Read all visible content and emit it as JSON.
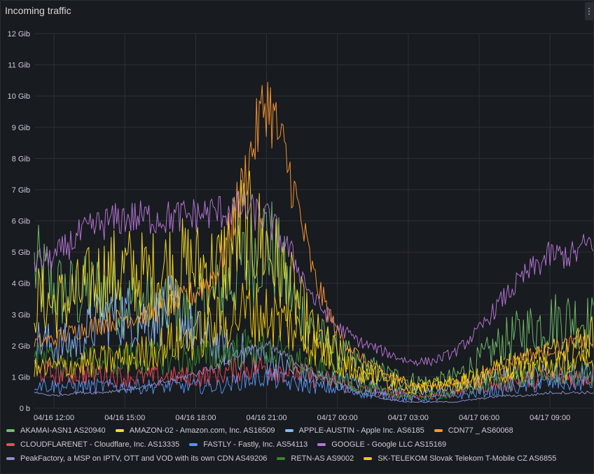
{
  "panel": {
    "title": "Incoming traffic",
    "menu_icon": "vertical-ellipsis-icon"
  },
  "chart_data": {
    "type": "line",
    "title": "Incoming traffic",
    "xlabel": "",
    "ylabel": "",
    "grid": true,
    "legend_position": "bottom",
    "ylim": [
      0,
      12
    ],
    "y_unit": "Gib",
    "y_ticks": [
      "0 b",
      "1 Gib",
      "2 Gib",
      "3 Gib",
      "4 Gib",
      "5 Gib",
      "6 Gib",
      "7 Gib",
      "8 Gib",
      "9 Gib",
      "10 Gib",
      "11 Gib",
      "12 Gib"
    ],
    "x_ticks": [
      "04/16 12:00",
      "04/16 15:00",
      "04/16 18:00",
      "04/16 21:00",
      "04/17 00:00",
      "04/17 03:00",
      "04/17 06:00",
      "04/17 09:00"
    ],
    "x_range": [
      "04/16 11:10",
      "04/17 10:50"
    ],
    "x": [
      "04/16 11:10",
      "04/16 12:00",
      "04/16 13:00",
      "04/16 14:00",
      "04/16 15:00",
      "04/16 16:00",
      "04/16 17:00",
      "04/16 18:00",
      "04/16 19:00",
      "04/16 20:00",
      "04/16 21:00",
      "04/16 22:00",
      "04/16 23:00",
      "04/17 00:00",
      "04/17 01:00",
      "04/17 02:00",
      "04/17 03:00",
      "04/17 04:00",
      "04/17 05:00",
      "04/17 06:00",
      "04/17 07:00",
      "04/17 08:00",
      "04/17 09:00",
      "04/17 10:00",
      "04/17 10:50"
    ],
    "series": [
      {
        "name": "AKAMAI-ASN1 AS20940",
        "color": "#73bf69",
        "values": [
          4.5,
          3.8,
          3.6,
          3.8,
          3.4,
          3.3,
          3.0,
          3.1,
          3.6,
          4.6,
          5.5,
          3.7,
          2.4,
          1.8,
          1.4,
          1.1,
          0.9,
          0.8,
          1.0,
          1.5,
          2.1,
          2.5,
          2.8,
          2.9,
          2.7
        ]
      },
      {
        "name": "AMAZON-02 - Amazon.com, Inc. AS16509",
        "color": "#fade2a",
        "values": [
          3.5,
          3.3,
          3.6,
          4.2,
          4.4,
          4.2,
          4.6,
          4.5,
          4.5,
          5.8,
          5.2,
          3.8,
          2.4,
          1.7,
          1.2,
          1.0,
          0.7,
          0.6,
          0.8,
          1.0,
          1.3,
          1.5,
          1.7,
          2.0,
          2.3
        ]
      },
      {
        "name": "APPLE-AUSTIN - Apple Inc. AS6185",
        "color": "#8ab8ff",
        "values": [
          2.2,
          2.0,
          2.1,
          2.9,
          3.0,
          2.8,
          3.2,
          2.4,
          2.0,
          1.8,
          1.6,
          1.2,
          1.0,
          0.9,
          0.8,
          0.6,
          0.5,
          0.5,
          0.6,
          0.8,
          1.0,
          1.0,
          1.1,
          1.1,
          1.1
        ]
      },
      {
        "name": "CDN77 _ AS60068",
        "color": "#ff9830",
        "values": [
          2.1,
          2.2,
          2.5,
          2.7,
          2.9,
          3.0,
          3.3,
          3.7,
          4.5,
          7.2,
          10.0,
          7.5,
          4.2,
          2.4,
          1.6,
          1.1,
          0.8,
          0.7,
          0.8,
          1.0,
          1.4,
          1.7,
          1.9,
          2.1,
          2.1
        ]
      },
      {
        "name": "CLOUDFLARENET - Cloudflare, Inc. AS13335",
        "color": "#f2495c",
        "values": [
          1.2,
          1.1,
          1.1,
          1.1,
          1.0,
          1.0,
          1.0,
          1.0,
          1.1,
          1.3,
          1.3,
          1.2,
          1.0,
          0.8,
          0.6,
          0.5,
          0.4,
          0.4,
          0.5,
          0.7,
          0.8,
          0.9,
          1.0,
          1.0,
          1.0
        ]
      },
      {
        "name": "FASTLY - Fastly, Inc. AS54113",
        "color": "#5794f2",
        "values": [
          0.8,
          0.7,
          0.7,
          0.7,
          0.7,
          0.7,
          0.7,
          0.7,
          0.7,
          0.9,
          1.0,
          0.8,
          0.7,
          0.6,
          0.5,
          0.4,
          0.3,
          0.3,
          0.4,
          0.5,
          0.6,
          0.7,
          0.8,
          0.8,
          0.8
        ]
      },
      {
        "name": "GOOGLE - Google LLC AS15169",
        "color": "#b877d9",
        "values": [
          4.7,
          4.8,
          5.5,
          5.9,
          6.1,
          6.1,
          6.1,
          6.2,
          6.3,
          6.4,
          6.1,
          5.0,
          3.5,
          2.6,
          2.1,
          1.8,
          1.5,
          1.5,
          1.8,
          2.5,
          3.5,
          4.3,
          4.9,
          4.9,
          5.4
        ]
      },
      {
        "name": "PeakFactory, a MSP on IPTV, OTT and VOD with its own CDN AS49206",
        "color": "#8f8fcf",
        "values": [
          0.5,
          0.4,
          0.5,
          0.5,
          0.6,
          0.7,
          0.9,
          1.1,
          1.4,
          1.8,
          2.0,
          1.6,
          1.1,
          0.8,
          0.5,
          0.3,
          0.2,
          0.2,
          0.2,
          0.3,
          0.4,
          0.4,
          0.5,
          0.5,
          0.5
        ]
      },
      {
        "name": "RETN-AS AS9002",
        "color": "#37872d",
        "values": [
          1.6,
          1.5,
          1.5,
          1.5,
          1.6,
          1.6,
          1.6,
          1.6,
          1.7,
          1.9,
          1.9,
          1.6,
          1.3,
          1.0,
          0.7,
          0.5,
          0.4,
          0.4,
          0.5,
          0.7,
          0.9,
          1.0,
          1.1,
          1.1,
          1.1
        ]
      },
      {
        "name": "SK-TELEKOM Slovak Telekom T-Mobile CZ AS6855",
        "color": "#f2cc0c",
        "values": [
          1.2,
          1.3,
          1.4,
          1.5,
          1.6,
          1.8,
          2.1,
          2.3,
          2.7,
          3.1,
          3.0,
          2.6,
          2.0,
          1.5,
          1.1,
          0.9,
          0.7,
          0.7,
          0.8,
          1.0,
          1.2,
          1.3,
          1.4,
          1.4,
          1.4
        ]
      }
    ]
  }
}
